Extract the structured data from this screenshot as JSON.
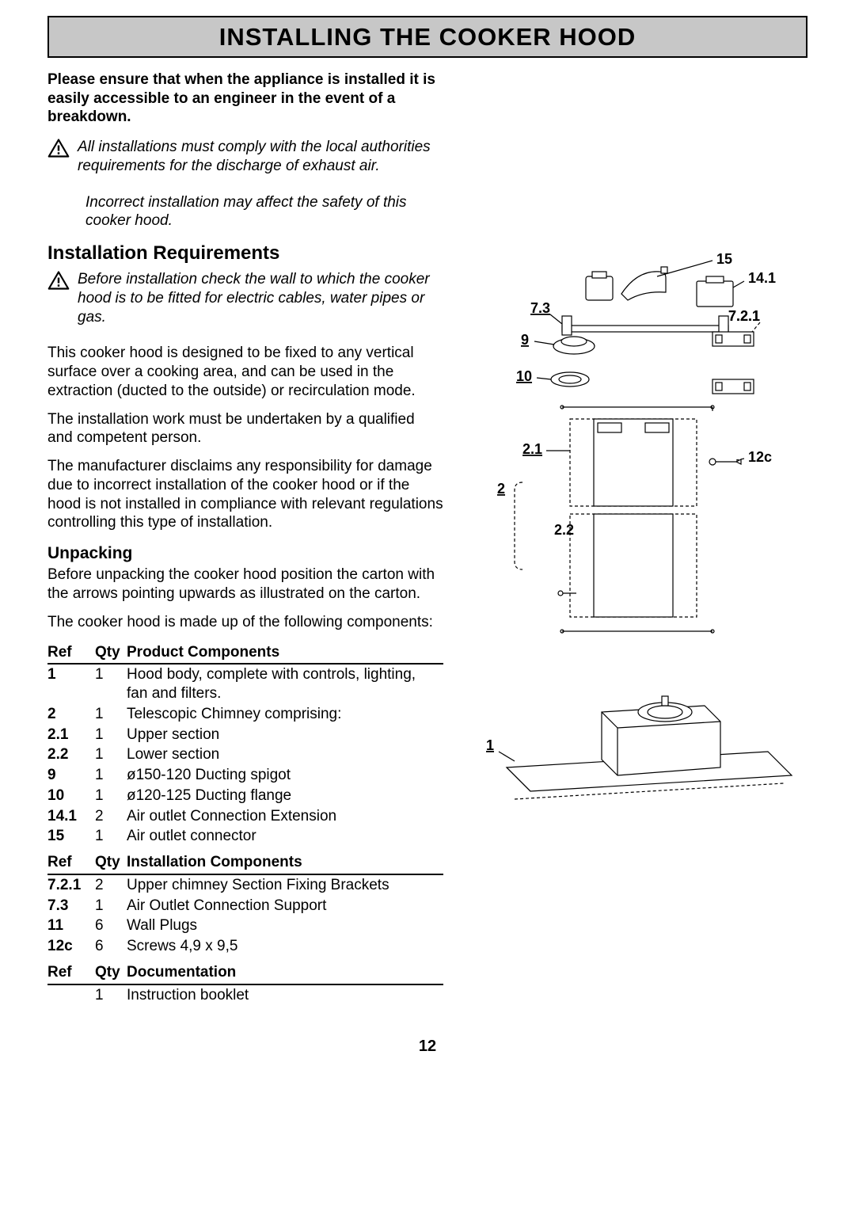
{
  "title": "INSTALLING THE COOKER HOOD",
  "intro": "Please ensure that when the appliance is installed it is easily accessible to an engineer in the event of a breakdown.",
  "warn1a": "All installations must comply with the local authorities requirements for the discharge of exhaust air.",
  "warn1b": "Incorrect installation may affect the safety of this cooker hood.",
  "h_install_req": "Installation Requirements",
  "warn2": "Before installation check the wall to which the cooker hood is to be fitted for electric cables, water pipes or gas.",
  "p1": "This cooker hood is designed to be fixed to any vertical surface over a cooking area, and can be used in the extraction (ducted to the outside) or recirculation mode.",
  "p2": "The installation work must be undertaken by a qualified and competent person.",
  "p3": "The manufacturer disclaims any responsibility for damage due to incorrect installation of the cooker hood or if the hood is not installed in compliance with relevant regulations controlling this type of installation.",
  "h_unpack": "Unpacking",
  "p4": "Before unpacking the cooker hood position the carton with the arrows pointing upwards as illustrated on the carton.",
  "p5": "The cooker hood is made up of the following components:",
  "th_ref": "Ref",
  "th_qty": "Qty",
  "th_prod": "Product Components",
  "th_inst": "Installation Components",
  "th_doc": "Documentation",
  "rows_prod": [
    {
      "ref": "1",
      "qty": "1",
      "desc": "Hood body, complete with controls, lighting, fan and filters."
    },
    {
      "ref": "2",
      "qty": "1",
      "desc": "Telescopic  Chimney comprising:"
    },
    {
      "ref": "2.1",
      "qty": "1",
      "desc": "Upper section"
    },
    {
      "ref": "2.2",
      "qty": "1",
      "desc": "Lower section"
    },
    {
      "ref": "9",
      "qty": "1",
      "desc": "ø150-120 Ducting spigot"
    },
    {
      "ref": "10",
      "qty": "1",
      "desc": "ø120-125 Ducting flange"
    },
    {
      "ref": "14.1",
      "qty": "2",
      "desc": "Air outlet Connection Extension"
    },
    {
      "ref": "15",
      "qty": "1",
      "desc": "Air outlet connector"
    }
  ],
  "rows_inst": [
    {
      "ref": "7.2.1",
      "qty": "2",
      "desc": "Upper chimney Section Fixing Brackets"
    },
    {
      "ref": "7.3",
      "qty": "1",
      "desc": "Air Outlet Connection Support"
    },
    {
      "ref": "11",
      "qty": "6",
      "desc": "Wall Plugs"
    },
    {
      "ref": "12c",
      "qty": "6",
      "desc": "Screws 4,9 x 9,5"
    }
  ],
  "rows_doc": [
    {
      "ref": "",
      "qty": "1",
      "desc": "Instruction booklet"
    }
  ],
  "diagram": {
    "labels": {
      "l15": "15",
      "l14_1": "14.1",
      "l7_3": "7.3",
      "l7_2_1": "7.2.1",
      "l9": "9",
      "l10": "10",
      "l2_1": "2.1",
      "l12c": "12c",
      "l2": "2",
      "l2_2": "2.2",
      "l1": "1"
    }
  },
  "pagenum": "12"
}
